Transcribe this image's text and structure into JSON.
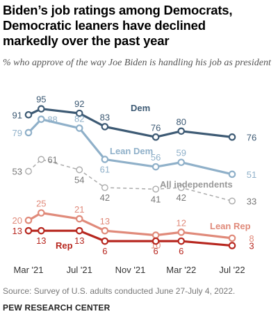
{
  "title": "Biden’s job ratings among Democrats,\nDemocratic leaners have declined\nmarkedly over the past year",
  "subtitle": "% who approve of the way Joe Biden is handling his job as president",
  "source": "Source: Survey of U.S. adults conducted June 27-July 4, 2022.",
  "brand": "PEW RESEARCH CENTER",
  "chart_data": {
    "type": "line",
    "title": "Biden’s job ratings among Democrats, Democratic leaners have declined markedly over the past year",
    "subtitle": "% who approve of the way Joe Biden is handling his job as president",
    "x": [
      "Mar '21",
      "Apr '21",
      "Jul '21",
      "Sep '21",
      "Jan '22",
      "Mar '22",
      "Jul '22"
    ],
    "x_dates": [
      "2021-03",
      "2021-04",
      "2021-07",
      "2021-09",
      "2022-01",
      "2022-03",
      "2022-07"
    ],
    "xticks": [
      "Mar '21",
      "Jul '21",
      "Nov '21",
      "Mar '22",
      "Jul '22"
    ],
    "ylim": [
      0,
      100
    ],
    "grid": false,
    "legend": "inline labels",
    "series": [
      {
        "name": "Dem",
        "color": "#3d5a74",
        "values": [
          91,
          95,
          92,
          83,
          76,
          80,
          76
        ],
        "dashed": false
      },
      {
        "name": "Lean Dem",
        "color": "#8fb0c9",
        "values": [
          79,
          88,
          82,
          61,
          56,
          59,
          51
        ],
        "dashed": false
      },
      {
        "name": "All independents",
        "color": "#aaaaaa",
        "values": [
          53,
          61,
          54,
          42,
          41,
          42,
          33
        ],
        "dashed": true
      },
      {
        "name": "Lean Rep",
        "color": "#e08a7a",
        "values": [
          20,
          25,
          21,
          13,
          10,
          12,
          8
        ],
        "dashed": false
      },
      {
        "name": "Rep",
        "color": "#b7271f",
        "values": [
          13,
          13,
          13,
          6,
          6,
          6,
          3
        ],
        "dashed": false
      }
    ]
  }
}
